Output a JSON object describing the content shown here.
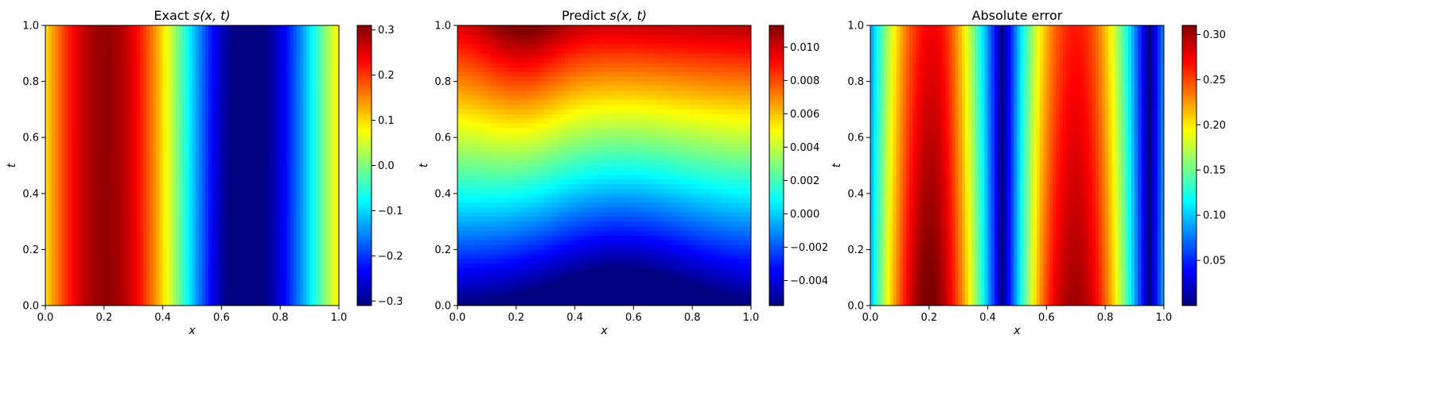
{
  "colormap": "jet",
  "chart_data": [
    {
      "type": "heatmap",
      "title_plain": "Exact ",
      "title_math": "s(x, t)",
      "xlabel": "x",
      "ylabel": "t",
      "xlim": [
        0.0,
        1.0
      ],
      "ylim": [
        0.0,
        1.0
      ],
      "xticks": [
        "0.0",
        "0.2",
        "0.4",
        "0.6",
        "0.8",
        "1.0"
      ],
      "yticks": [
        "0.0",
        "0.2",
        "0.4",
        "0.6",
        "0.8",
        "1.0"
      ],
      "colorbar": {
        "min": -0.31,
        "max": 0.31,
        "ticks": [
          -0.3,
          -0.2,
          -0.1,
          0.0,
          0.1,
          0.2,
          0.3
        ],
        "tick_labels": [
          "−0.3",
          "−0.2",
          "−0.1",
          "0.0",
          "0.1",
          "0.2",
          "0.3"
        ]
      }
    },
    {
      "type": "heatmap",
      "title_plain": "Predict ",
      "title_math": "s(x, t)",
      "xlabel": "x",
      "ylabel": "t",
      "xlim": [
        0.0,
        1.0
      ],
      "ylim": [
        0.0,
        1.0
      ],
      "xticks": [
        "0.0",
        "0.2",
        "0.4",
        "0.6",
        "0.8",
        "1.0"
      ],
      "yticks": [
        "0.0",
        "0.2",
        "0.4",
        "0.6",
        "0.8",
        "1.0"
      ],
      "colorbar": {
        "min": -0.0055,
        "max": 0.0113,
        "ticks": [
          -0.004,
          -0.002,
          0.0,
          0.002,
          0.004,
          0.006,
          0.008,
          0.01
        ],
        "tick_labels": [
          "−0.004",
          "−0.002",
          "0.000",
          "0.002",
          "0.004",
          "0.006",
          "0.008",
          "0.010"
        ]
      }
    },
    {
      "type": "heatmap",
      "title_plain": "Absolute error",
      "title_math": "",
      "xlabel": "x",
      "ylabel": "t",
      "xlim": [
        0.0,
        1.0
      ],
      "ylim": [
        0.0,
        1.0
      ],
      "xticks": [
        "0.0",
        "0.2",
        "0.4",
        "0.6",
        "0.8",
        "1.0"
      ],
      "yticks": [
        "0.0",
        "0.2",
        "0.4",
        "0.6",
        "0.8",
        "1.0"
      ],
      "colorbar": {
        "min": 0.0,
        "max": 0.31,
        "ticks": [
          0.05,
          0.1,
          0.15,
          0.2,
          0.25,
          0.3
        ],
        "tick_labels": [
          "0.05",
          "0.10",
          "0.15",
          "0.20",
          "0.25",
          "0.30"
        ]
      }
    }
  ]
}
